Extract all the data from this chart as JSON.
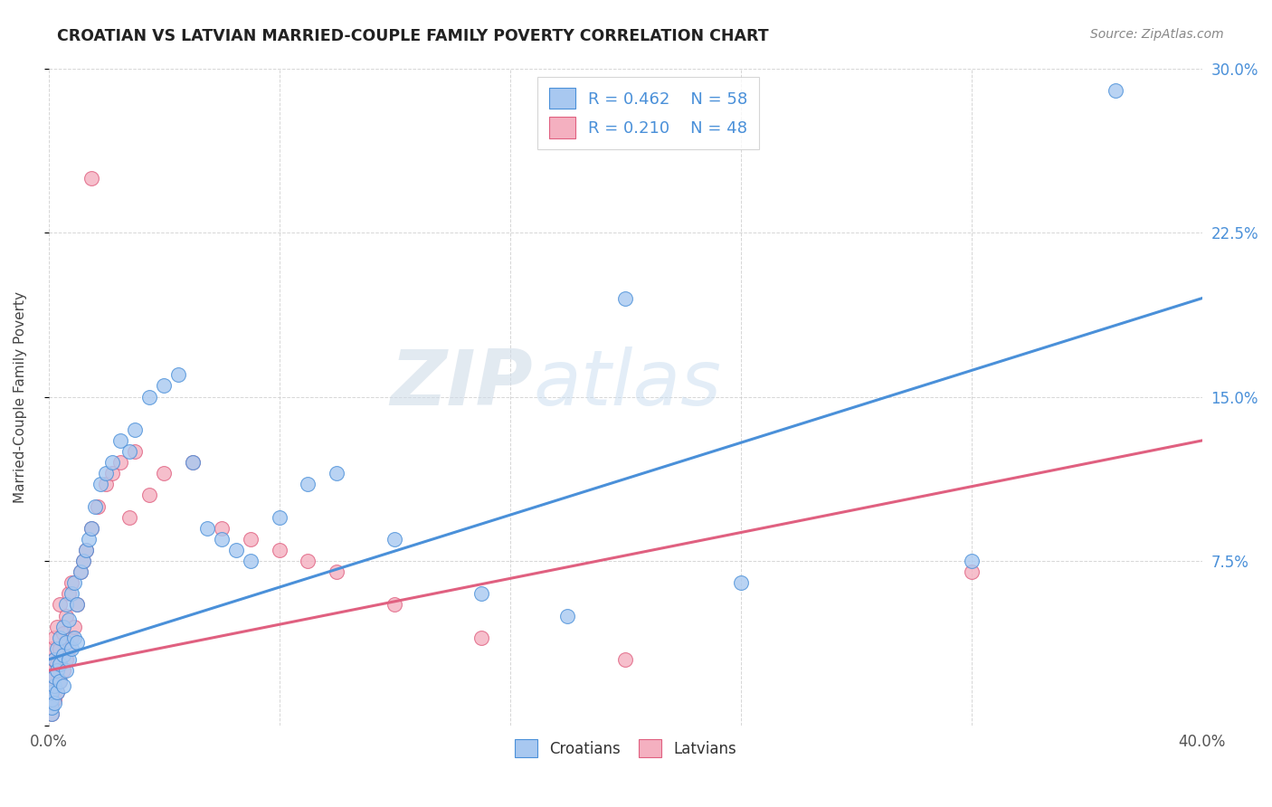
{
  "title": "CROATIAN VS LATVIAN MARRIED-COUPLE FAMILY POVERTY CORRELATION CHART",
  "source": "Source: ZipAtlas.com",
  "ylabel": "Married-Couple Family Poverty",
  "xlim": [
    0.0,
    0.4
  ],
  "ylim": [
    0.0,
    0.3
  ],
  "xticks": [
    0.0,
    0.08,
    0.16,
    0.24,
    0.32,
    0.4
  ],
  "xticklabels": [
    "0.0%",
    "",
    "",
    "",
    "",
    "40.0%"
  ],
  "yticks": [
    0.0,
    0.075,
    0.15,
    0.225,
    0.3
  ],
  "yticklabels_right": [
    "",
    "7.5%",
    "15.0%",
    "22.5%",
    "30.0%"
  ],
  "croatians_color": "#a8c8f0",
  "latvians_color": "#f4b0c0",
  "line_croatians_color": "#4a90d9",
  "line_latvians_color": "#e06080",
  "R_croatians": 0.462,
  "N_croatians": 58,
  "R_latvians": 0.21,
  "N_latvians": 48,
  "watermark_zip": "ZIP",
  "watermark_atlas": "atlas",
  "background_color": "#ffffff",
  "grid_color": "#cccccc",
  "croatians_x": [
    0.001,
    0.001,
    0.001,
    0.001,
    0.002,
    0.002,
    0.002,
    0.002,
    0.003,
    0.003,
    0.003,
    0.004,
    0.004,
    0.004,
    0.005,
    0.005,
    0.005,
    0.006,
    0.006,
    0.006,
    0.007,
    0.007,
    0.008,
    0.008,
    0.009,
    0.009,
    0.01,
    0.01,
    0.011,
    0.012,
    0.013,
    0.014,
    0.015,
    0.016,
    0.018,
    0.02,
    0.022,
    0.025,
    0.028,
    0.03,
    0.035,
    0.04,
    0.045,
    0.05,
    0.055,
    0.06,
    0.065,
    0.07,
    0.08,
    0.09,
    0.1,
    0.12,
    0.15,
    0.18,
    0.2,
    0.24,
    0.32,
    0.37
  ],
  "croatians_y": [
    0.005,
    0.008,
    0.012,
    0.015,
    0.01,
    0.018,
    0.022,
    0.03,
    0.015,
    0.025,
    0.035,
    0.02,
    0.028,
    0.04,
    0.018,
    0.032,
    0.045,
    0.025,
    0.038,
    0.055,
    0.03,
    0.048,
    0.035,
    0.06,
    0.04,
    0.065,
    0.038,
    0.055,
    0.07,
    0.075,
    0.08,
    0.085,
    0.09,
    0.1,
    0.11,
    0.115,
    0.12,
    0.13,
    0.125,
    0.135,
    0.15,
    0.155,
    0.16,
    0.12,
    0.09,
    0.085,
    0.08,
    0.075,
    0.095,
    0.11,
    0.115,
    0.085,
    0.06,
    0.05,
    0.195,
    0.065,
    0.075,
    0.29
  ],
  "latvians_x": [
    0.001,
    0.001,
    0.001,
    0.001,
    0.001,
    0.002,
    0.002,
    0.002,
    0.002,
    0.003,
    0.003,
    0.003,
    0.004,
    0.004,
    0.004,
    0.005,
    0.005,
    0.006,
    0.006,
    0.007,
    0.007,
    0.008,
    0.008,
    0.009,
    0.01,
    0.011,
    0.012,
    0.013,
    0.015,
    0.017,
    0.02,
    0.022,
    0.025,
    0.028,
    0.03,
    0.035,
    0.04,
    0.05,
    0.06,
    0.07,
    0.08,
    0.09,
    0.1,
    0.12,
    0.15,
    0.2,
    0.32,
    0.015
  ],
  "latvians_y": [
    0.005,
    0.01,
    0.018,
    0.025,
    0.035,
    0.012,
    0.022,
    0.03,
    0.04,
    0.015,
    0.028,
    0.045,
    0.02,
    0.035,
    0.055,
    0.025,
    0.042,
    0.03,
    0.05,
    0.035,
    0.06,
    0.04,
    0.065,
    0.045,
    0.055,
    0.07,
    0.075,
    0.08,
    0.09,
    0.1,
    0.11,
    0.115,
    0.12,
    0.095,
    0.125,
    0.105,
    0.115,
    0.12,
    0.09,
    0.085,
    0.08,
    0.075,
    0.07,
    0.055,
    0.04,
    0.03,
    0.07,
    0.25
  ],
  "line_cr_x0": 0.0,
  "line_cr_y0": 0.03,
  "line_cr_x1": 0.4,
  "line_cr_y1": 0.195,
  "line_lat_x0": 0.0,
  "line_lat_y0": 0.025,
  "line_lat_x1": 0.4,
  "line_lat_y1": 0.13
}
